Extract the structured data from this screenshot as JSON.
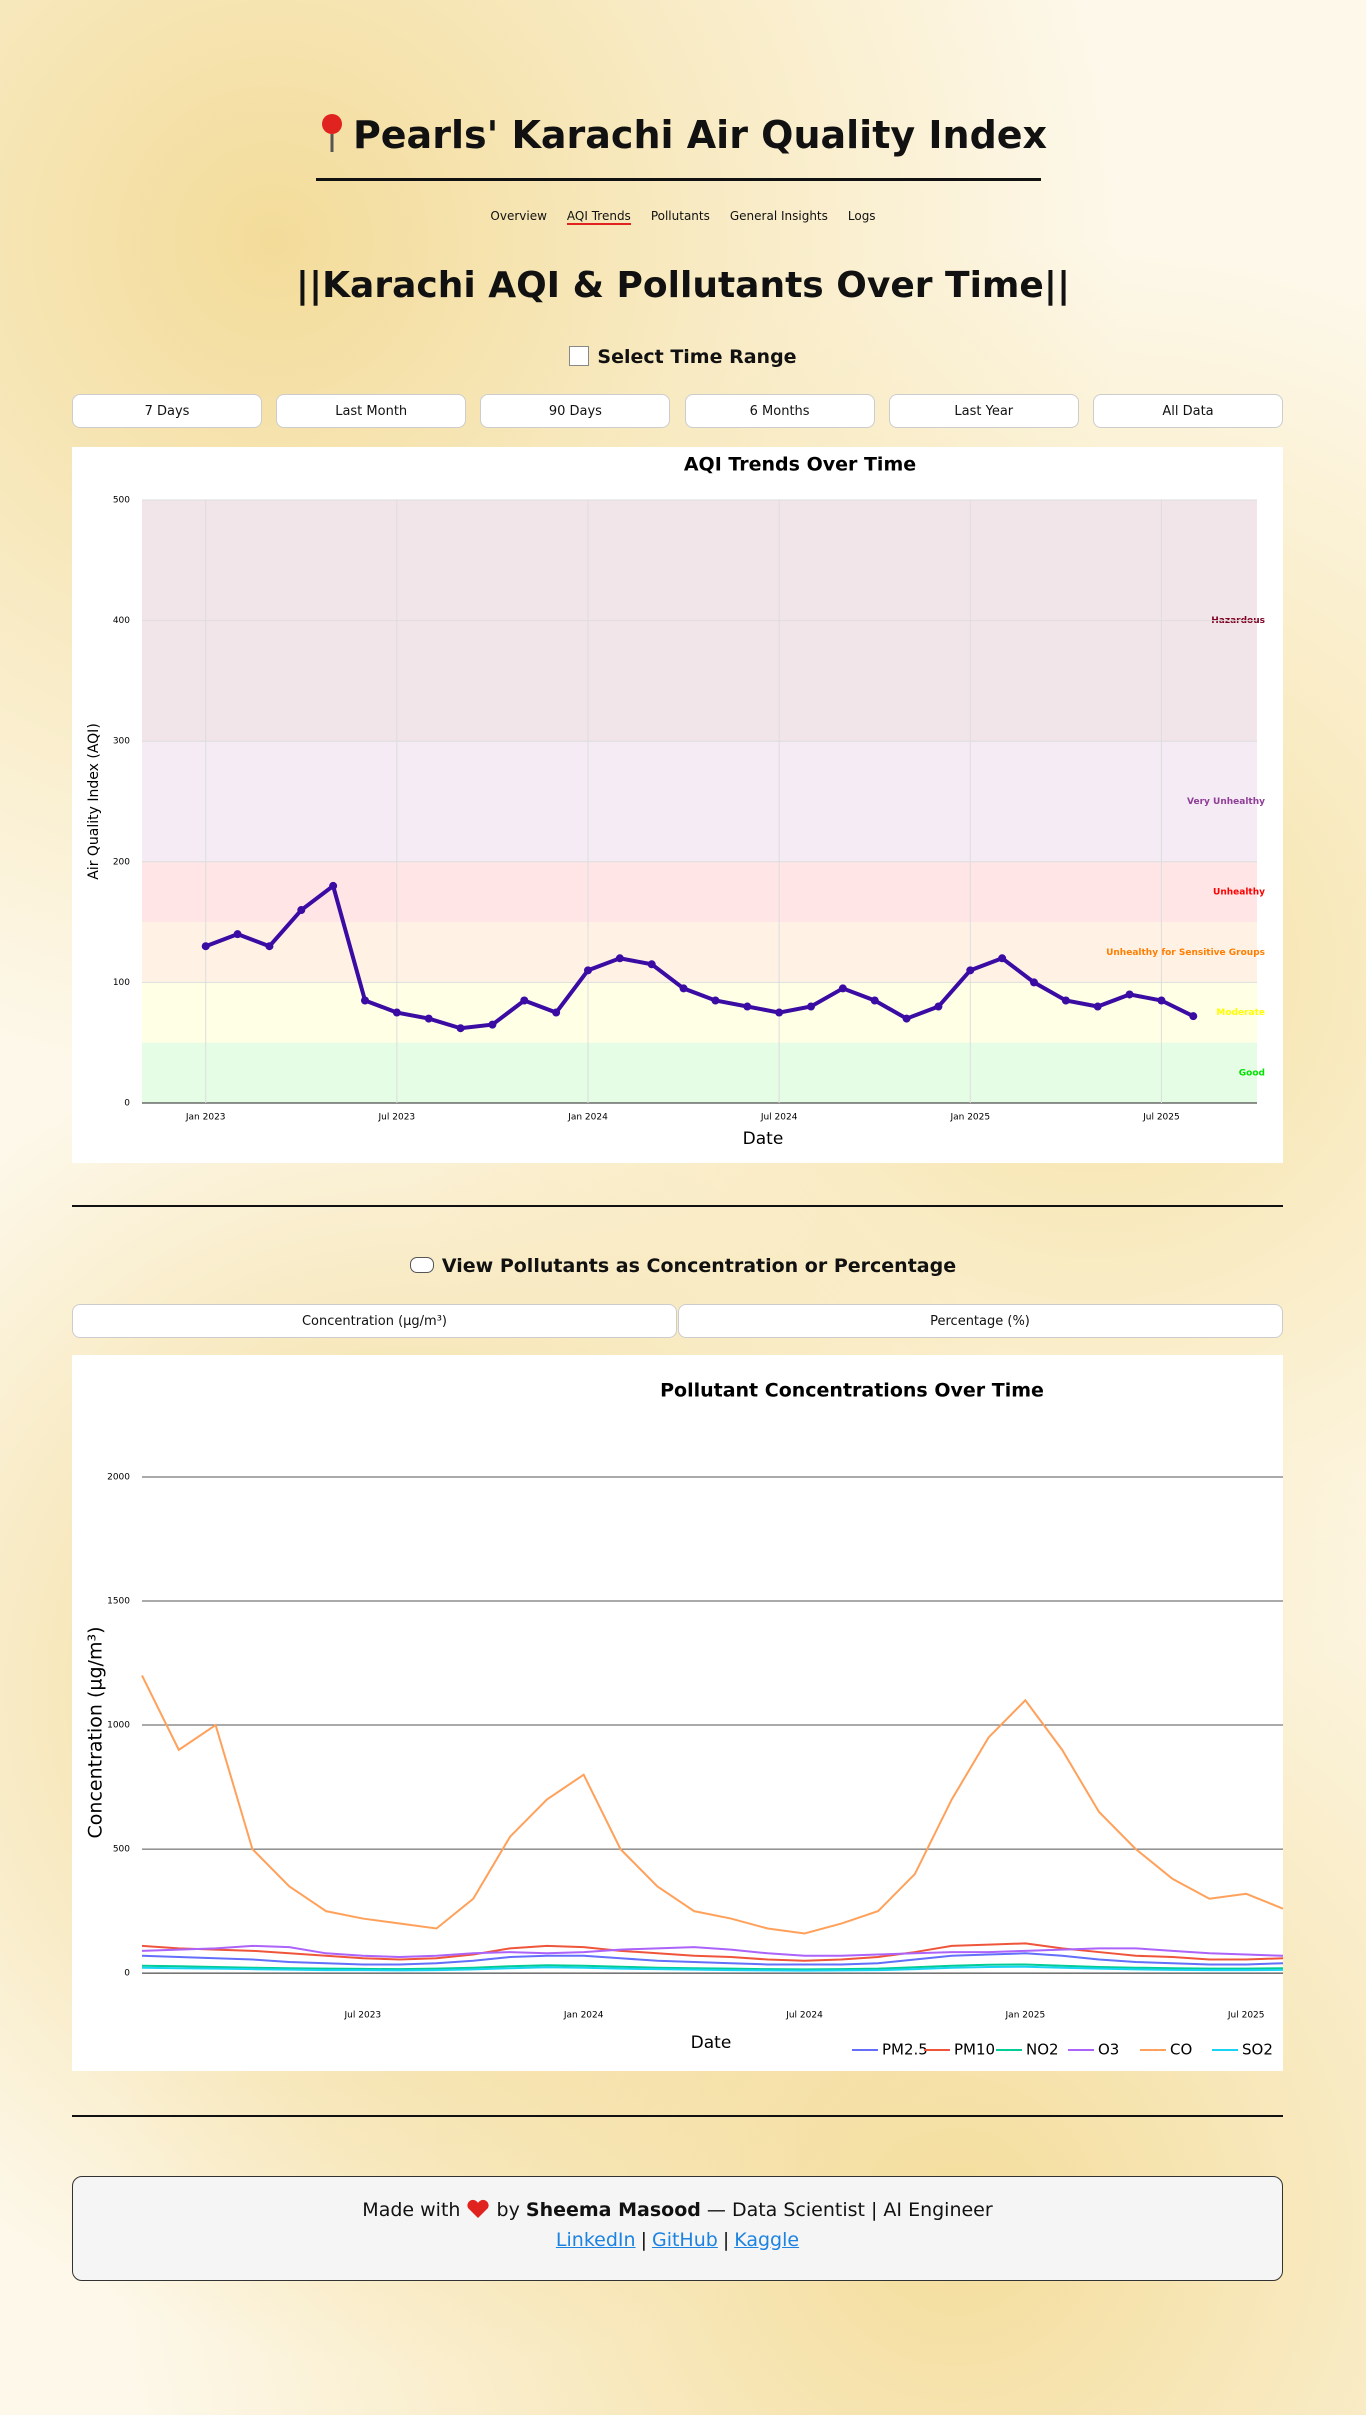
{
  "header": {
    "title": "Pearls' Karachi Air Quality Index",
    "nav": [
      "Overview",
      "AQI Trends",
      "Pollutants",
      "General Insights",
      "Logs"
    ]
  },
  "section_title": "||Karachi AQI & Pollutants Over Time||",
  "time_range": {
    "label": "Select Time Range",
    "options": [
      "7 Days",
      "Last Month",
      "90 Days",
      "6 Months",
      "Last Year",
      "All Data"
    ]
  },
  "chart_data": [
    {
      "type": "line",
      "title": "AQI Trends Over Time",
      "x_label": "Date",
      "y_label": "Air Quality Index (AQI)",
      "x": [
        "2023-01",
        "2023-02",
        "2023-03",
        "2023-04",
        "2023-05",
        "2023-06",
        "2023-07",
        "2023-08",
        "2023-09",
        "2023-10",
        "2023-11",
        "2023-12",
        "2024-01",
        "2024-02",
        "2024-03",
        "2024-04",
        "2024-05",
        "2024-06",
        "2024-07",
        "2024-08",
        "2024-09",
        "2024-10",
        "2024-11",
        "2024-12",
        "2025-01",
        "2025-02",
        "2025-03",
        "2025-04",
        "2025-05",
        "2025-06",
        "2025-07",
        "2025-08"
      ],
      "series": [
        {
          "color": "#3a0ca3",
          "values": [
            130,
            140,
            130,
            160,
            180,
            85,
            75,
            70,
            62,
            65,
            85,
            75,
            110,
            120,
            115,
            95,
            85,
            80,
            75,
            80,
            95,
            85,
            70,
            80,
            110,
            120,
            100,
            85,
            80,
            90,
            85,
            72
          ]
        }
      ],
      "xlim": [
        "2022-11",
        "2025-10"
      ],
      "xticks": [
        {
          "value": "2023-01",
          "label": "Jan 2023"
        },
        {
          "value": "2023-07",
          "label": "Jul 2023"
        },
        {
          "value": "2024-01",
          "label": "Jan 2024"
        },
        {
          "value": "2024-07",
          "label": "Jul 2024"
        },
        {
          "value": "2025-01",
          "label": "Jan 2025"
        },
        {
          "value": "2025-07",
          "label": "Jul 2025"
        }
      ],
      "ylim": [
        0,
        500
      ],
      "yticks": [
        0,
        100,
        200,
        300,
        400,
        500
      ],
      "grid": true,
      "bands": [
        {
          "label": "Good",
          "from": 0,
          "to": 50,
          "color": "#00e400"
        },
        {
          "label": "Moderate",
          "from": 50,
          "to": 100,
          "color": "#ffff00"
        },
        {
          "label": "Unhealthy for Sensitive Groups",
          "from": 100,
          "to": 150,
          "color": "#ff7e00"
        },
        {
          "label": "Unhealthy",
          "from": 150,
          "to": 200,
          "color": "#ff0000"
        },
        {
          "label": "Very Unhealthy",
          "from": 200,
          "to": 300,
          "color": "#8f3f97"
        },
        {
          "label": "Hazardous",
          "from": 300,
          "to": 500,
          "color": "#7e0023"
        }
      ]
    },
    {
      "type": "line",
      "title": "Pollutant Concentrations Over Time",
      "x_label": "Date",
      "y_label": "Concentration (µg/m³)",
      "x": [
        "2023-01",
        "2023-02",
        "2023-03",
        "2023-04",
        "2023-05",
        "2023-06",
        "2023-07",
        "2023-08",
        "2023-09",
        "2023-10",
        "2023-11",
        "2023-12",
        "2024-01",
        "2024-02",
        "2024-03",
        "2024-04",
        "2024-05",
        "2024-06",
        "2024-07",
        "2024-08",
        "2024-09",
        "2024-10",
        "2024-11",
        "2024-12",
        "2025-01",
        "2025-02",
        "2025-03",
        "2025-04",
        "2025-05",
        "2025-06",
        "2025-07",
        "2025-08"
      ],
      "series": [
        {
          "name": "PM2.5",
          "color": "#636efa",
          "values": [
            70,
            65,
            60,
            55,
            45,
            40,
            35,
            35,
            40,
            50,
            65,
            70,
            70,
            60,
            50,
            45,
            40,
            35,
            35,
            35,
            40,
            55,
            70,
            75,
            80,
            70,
            55,
            45,
            40,
            35,
            35,
            40
          ]
        },
        {
          "name": "PM10",
          "color": "#ef553b",
          "values": [
            110,
            100,
            95,
            90,
            80,
            70,
            60,
            55,
            60,
            75,
            100,
            110,
            105,
            90,
            80,
            70,
            65,
            55,
            50,
            55,
            65,
            85,
            110,
            115,
            120,
            100,
            85,
            70,
            65,
            55,
            55,
            60
          ]
        },
        {
          "name": "NO2",
          "color": "#00cc96",
          "values": [
            30,
            28,
            25,
            22,
            20,
            18,
            17,
            16,
            18,
            22,
            28,
            32,
            30,
            26,
            22,
            20,
            18,
            16,
            15,
            16,
            18,
            24,
            30,
            34,
            35,
            30,
            25,
            22,
            20,
            18,
            18,
            20
          ]
        },
        {
          "name": "O3",
          "color": "#ab63fa",
          "values": [
            90,
            95,
            100,
            110,
            105,
            80,
            70,
            65,
            70,
            80,
            85,
            80,
            85,
            95,
            100,
            105,
            95,
            80,
            70,
            70,
            75,
            80,
            85,
            85,
            90,
            95,
            100,
            100,
            90,
            80,
            75,
            70
          ]
        },
        {
          "name": "CO",
          "color": "#ffa15a",
          "values": [
            1200,
            900,
            1000,
            500,
            350,
            250,
            220,
            200,
            180,
            300,
            550,
            700,
            800,
            500,
            350,
            250,
            220,
            180,
            160,
            200,
            250,
            400,
            700,
            950,
            1100,
            900,
            650,
            500,
            380,
            300,
            320,
            260
          ]
        },
        {
          "name": "SO2",
          "color": "#19d3f3",
          "values": [
            22,
            20,
            18,
            16,
            14,
            12,
            12,
            11,
            12,
            15,
            20,
            24,
            22,
            18,
            16,
            14,
            12,
            11,
            10,
            11,
            12,
            16,
            22,
            25,
            26,
            22,
            18,
            15,
            13,
            12,
            12,
            13
          ]
        }
      ],
      "xlim": [
        "2023-01",
        "2025-08"
      ],
      "xticks": [
        {
          "value": "2023-07",
          "label": "Jul 2023"
        },
        {
          "value": "2024-01",
          "label": "Jan 2024"
        },
        {
          "value": "2024-07",
          "label": "Jul 2024"
        },
        {
          "value": "2025-01",
          "label": "Jan 2025"
        },
        {
          "value": "2025-07",
          "label": "Jul 2025"
        }
      ],
      "ylim": [
        -80,
        2020
      ],
      "yticks": [
        0,
        500,
        1000,
        1500,
        2000
      ],
      "grid": true,
      "legend": "bottom-right"
    }
  ],
  "pollutant_view": {
    "label": "View Pollutants as Concentration or Percentage",
    "options": [
      "Concentration (µg/m³)",
      "Percentage (%)"
    ]
  },
  "footer": {
    "made_with": "Made with",
    "by": "by",
    "author": "Sheema Masood",
    "role": "— Data Scientist | AI Engineer",
    "links": [
      "LinkedIn",
      "GitHub",
      "Kaggle"
    ],
    "separator": "|"
  }
}
